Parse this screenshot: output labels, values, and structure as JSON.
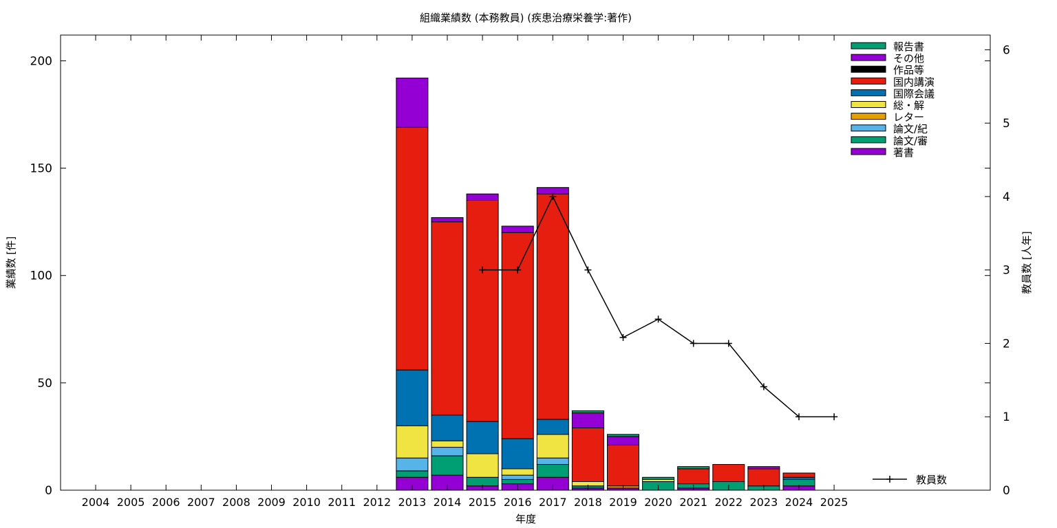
{
  "chart_data": {
    "type": "bar",
    "stacked": true,
    "title": "組織業績数 (本務教員) (疾患治療栄養学:著作)",
    "xlabel": "年度",
    "ylabel": "業績数 [件]",
    "y2label": "教員数 [人年]",
    "categories": [
      "2004",
      "2005",
      "2006",
      "2007",
      "2008",
      "2009",
      "2010",
      "2011",
      "2012",
      "2013",
      "2014",
      "2015",
      "2016",
      "2017",
      "2018",
      "2019",
      "2020",
      "2021",
      "2022",
      "2023",
      "2024",
      "2025"
    ],
    "ylim": [
      0,
      212
    ],
    "y2lim": [
      0,
      6.2
    ],
    "yticks": [
      0,
      50,
      100,
      150,
      200
    ],
    "y2ticks": [
      0,
      1,
      2,
      3,
      4,
      5,
      6
    ],
    "grid": false,
    "legend_position": "top-right",
    "series": [
      {
        "name": "著書",
        "color": "#9400d3",
        "values": [
          0,
          0,
          0,
          0,
          0,
          0,
          0,
          0,
          0,
          6,
          7,
          2,
          3,
          6,
          1,
          1,
          0,
          1,
          0,
          0,
          2,
          0
        ]
      },
      {
        "name": "論文/審",
        "color": "#009e73",
        "values": [
          0,
          0,
          0,
          0,
          0,
          0,
          0,
          0,
          0,
          3,
          9,
          4,
          2,
          6,
          1,
          0,
          4,
          2,
          4,
          2,
          3,
          0
        ]
      },
      {
        "name": "論文/紀",
        "color": "#56b4e9",
        "values": [
          0,
          0,
          0,
          0,
          0,
          0,
          0,
          0,
          0,
          6,
          4,
          0,
          2,
          3,
          0,
          0,
          0,
          0,
          0,
          0,
          0,
          0
        ]
      },
      {
        "name": "レター",
        "color": "#e69f00",
        "values": [
          0,
          0,
          0,
          0,
          0,
          0,
          0,
          0,
          0,
          0,
          0,
          0,
          0,
          0,
          0,
          1,
          0,
          0,
          0,
          0,
          0,
          0
        ]
      },
      {
        "name": "総・解",
        "color": "#f0e442",
        "values": [
          0,
          0,
          0,
          0,
          0,
          0,
          0,
          0,
          0,
          15,
          3,
          11,
          3,
          11,
          2,
          0,
          1,
          0,
          0,
          0,
          0,
          0
        ]
      },
      {
        "name": "国際会議",
        "color": "#0072b2",
        "values": [
          0,
          0,
          0,
          0,
          0,
          0,
          0,
          0,
          0,
          26,
          12,
          15,
          14,
          7,
          0,
          0,
          0,
          0,
          0,
          0,
          1,
          0
        ]
      },
      {
        "name": "国内講演",
        "color": "#e51e10",
        "values": [
          0,
          0,
          0,
          0,
          0,
          0,
          0,
          0,
          0,
          113,
          90,
          103,
          96,
          105,
          25,
          19,
          0,
          7,
          8,
          8,
          2,
          0
        ]
      },
      {
        "name": "作品等",
        "color": "#000000",
        "values": [
          0,
          0,
          0,
          0,
          0,
          0,
          0,
          0,
          0,
          0,
          0,
          0,
          0,
          0,
          0,
          0,
          0,
          0,
          0,
          0,
          0,
          0
        ]
      },
      {
        "name": "その他",
        "color": "#9400d3",
        "values": [
          0,
          0,
          0,
          0,
          0,
          0,
          0,
          0,
          0,
          23,
          2,
          3,
          3,
          3,
          7,
          4,
          0,
          0,
          0,
          1,
          0,
          0
        ]
      },
      {
        "name": "報告書",
        "color": "#009e73",
        "values": [
          0,
          0,
          0,
          0,
          0,
          0,
          0,
          0,
          0,
          0,
          0,
          0,
          0,
          0,
          1,
          1,
          1,
          1,
          0,
          0,
          0,
          0
        ]
      }
    ],
    "legend_order": [
      "報告書",
      "その他",
      "作品等",
      "国内講演",
      "国際会議",
      "総・解",
      "レター",
      "論文/紀",
      "論文/審",
      "著書"
    ],
    "line_series": {
      "name": "教員数",
      "axis": "y2",
      "color": "#000000",
      "x": [
        "2015",
        "2016",
        "2017",
        "2018",
        "2019",
        "2020",
        "2021",
        "2022",
        "2023",
        "2024",
        "2025"
      ],
      "values": [
        3,
        3,
        4,
        3,
        2.08,
        2.33,
        2,
        2,
        1.41,
        1,
        1
      ]
    }
  }
}
